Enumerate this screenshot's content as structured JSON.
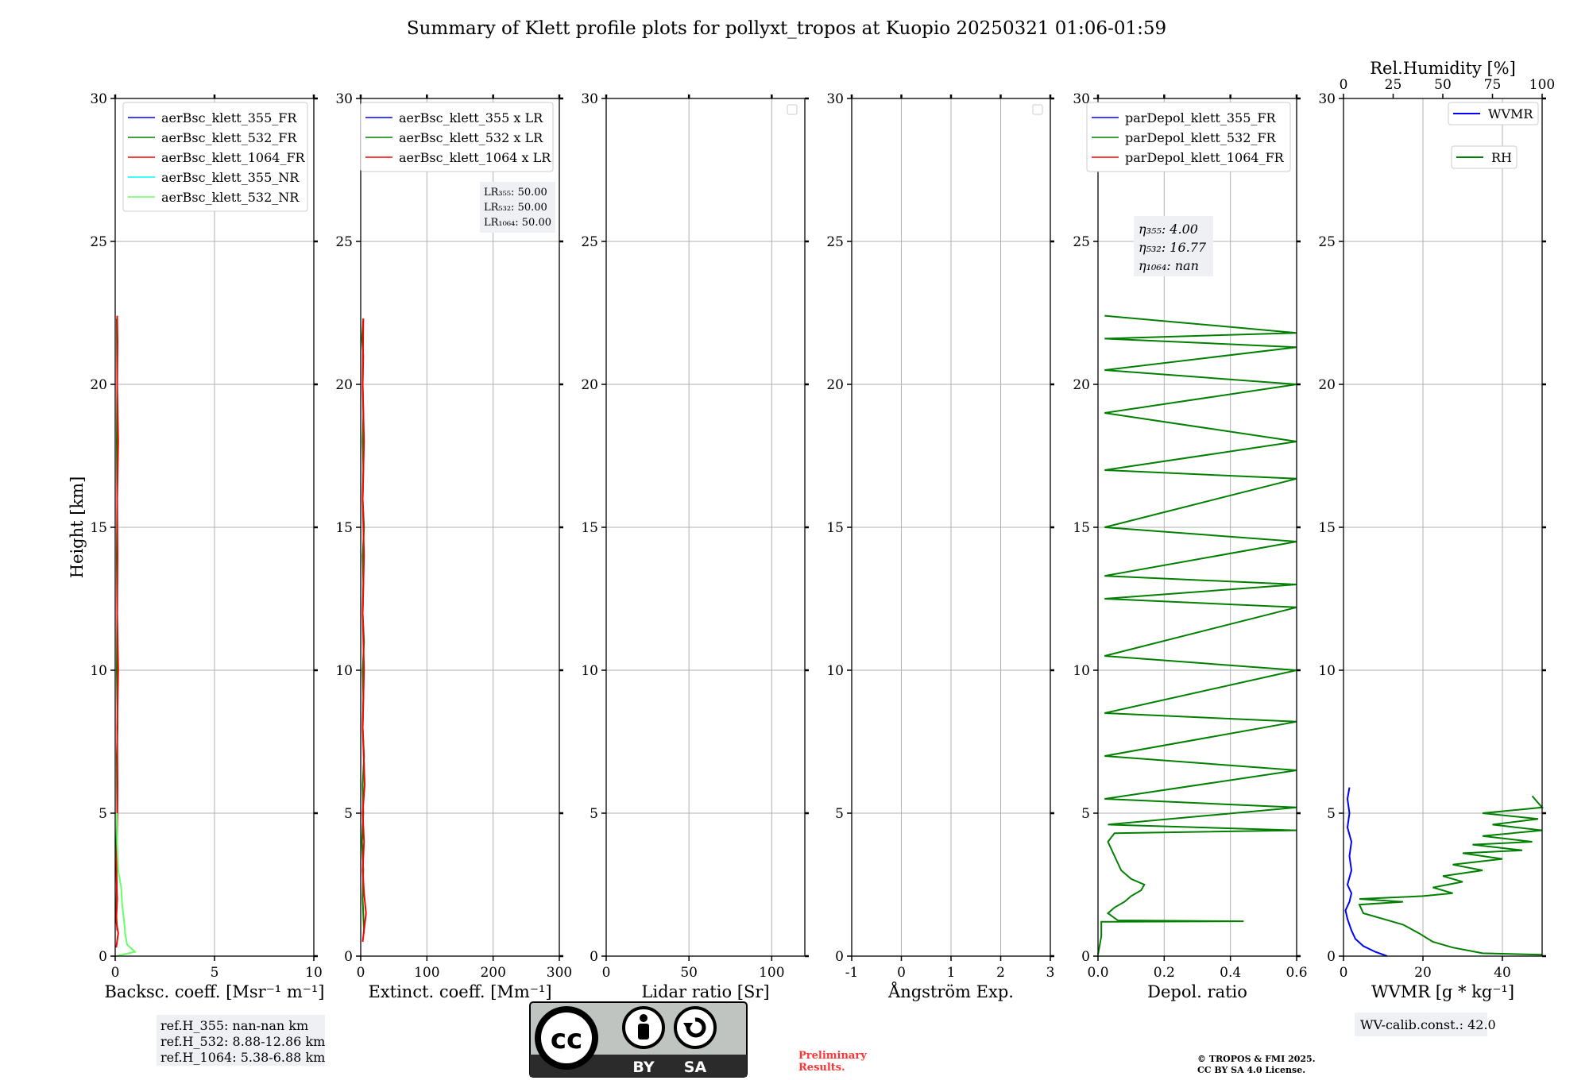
{
  "figure": {
    "title": "Summary of Klett profile plots for pollyxt_tropos at Kuopio 20250321 01:06-01:59",
    "preliminary_line1": "Preliminary",
    "preliminary_line2": "Results.",
    "copyright_line1": "© TROPOS & FMI 2025.",
    "copyright_line2": "CC BY SA 4.0 License.",
    "license_badge": {
      "by": "BY",
      "sa": "SA",
      "cc": "cc"
    }
  },
  "chart_data": [
    {
      "id": "bsc",
      "type": "line",
      "xlabel": "Backsc. coeff. [Msr⁻¹ m⁻¹]",
      "ylabel": "Height [km]",
      "xlim": [
        0,
        10
      ],
      "ylim": [
        0,
        30
      ],
      "xticks": [
        0,
        5,
        10
      ],
      "yticks": [
        0,
        5,
        10,
        15,
        20,
        25,
        30
      ],
      "grid": true,
      "legend": "top-right",
      "series": [
        {
          "name": "aerBsc_klett_355_FR",
          "color": "#0000ff",
          "points": []
        },
        {
          "name": "aerBsc_klett_532_FR",
          "color": "#008000",
          "points": [
            [
              0.1,
              0.9
            ],
            [
              0.05,
              1.5
            ],
            [
              0.08,
              2.5
            ],
            [
              0.06,
              4
            ],
            [
              0.1,
              5
            ],
            [
              0.08,
              7
            ],
            [
              0.12,
              8
            ],
            [
              0.08,
              10
            ],
            [
              0.1,
              12
            ],
            [
              0.08,
              14
            ],
            [
              0.1,
              16
            ],
            [
              0.08,
              18
            ],
            [
              0.1,
              20
            ],
            [
              0.08,
              22.3
            ]
          ]
        },
        {
          "name": "aerBsc_klett_1064_FR",
          "color": "#ff0000",
          "points": [
            [
              0.05,
              0.3
            ],
            [
              0.15,
              0.8
            ],
            [
              0.05,
              1.2
            ],
            [
              0.1,
              2
            ],
            [
              0.05,
              3
            ],
            [
              0.1,
              4
            ],
            [
              0.12,
              6
            ],
            [
              0.1,
              8
            ],
            [
              0.15,
              10
            ],
            [
              0.1,
              12
            ],
            [
              0.12,
              14
            ],
            [
              0.1,
              16
            ],
            [
              0.15,
              18
            ],
            [
              0.1,
              20
            ],
            [
              0.12,
              21.5
            ],
            [
              0.1,
              22.4
            ]
          ]
        },
        {
          "name": "aerBsc_klett_355_NR",
          "color": "#00ffff",
          "points": []
        },
        {
          "name": "aerBsc_klett_532_NR",
          "color": "#66ff66",
          "points": [
            [
              0.05,
              0
            ],
            [
              1.0,
              0.15
            ],
            [
              0.6,
              0.4
            ],
            [
              0.5,
              0.8
            ],
            [
              0.45,
              1.2
            ],
            [
              0.35,
              1.8
            ],
            [
              0.3,
              2.4
            ],
            [
              0.15,
              3
            ],
            [
              0.1,
              4
            ],
            [
              0.08,
              5
            ]
          ]
        }
      ],
      "notes": [
        "ref.H_355: nan-nan km",
        "ref.H_532: 8.88-12.86 km",
        "ref.H_1064: 5.38-6.88 km"
      ]
    },
    {
      "id": "ext",
      "type": "line",
      "xlabel": "Extinct. coeff. [Mm⁻¹]",
      "xlim": [
        0,
        300
      ],
      "ylim": [
        0,
        30
      ],
      "xticks": [
        0,
        100,
        200,
        300
      ],
      "yticks": [
        0,
        5,
        10,
        15,
        20,
        25,
        30
      ],
      "grid": true,
      "legend": "top-right",
      "series": [
        {
          "name": "aerBsc_klett_355 x LR",
          "color": "#0000ff",
          "points": []
        },
        {
          "name": "aerBsc_klett_532 x LR",
          "color": "#008000",
          "points": [
            [
              5,
              0.8
            ],
            [
              3,
              2
            ],
            [
              4,
              3
            ],
            [
              2,
              4
            ],
            [
              4,
              5
            ],
            [
              3,
              6
            ],
            [
              5,
              7
            ],
            [
              3,
              8
            ],
            [
              4,
              9
            ],
            [
              3,
              10
            ],
            [
              5,
              11
            ],
            [
              3,
              12
            ],
            [
              4,
              13
            ],
            [
              3,
              14
            ],
            [
              5,
              15
            ],
            [
              3,
              16
            ],
            [
              4,
              17
            ],
            [
              3,
              18
            ],
            [
              4,
              19
            ],
            [
              3,
              20
            ],
            [
              4,
              21
            ],
            [
              2,
              21.6
            ],
            [
              4,
              22.3
            ]
          ]
        },
        {
          "name": "aerBsc_klett_1064 x LR",
          "color": "#ff0000",
          "points": [
            [
              3,
              0.5
            ],
            [
              8,
              1.5
            ],
            [
              5,
              2.2
            ],
            [
              3,
              3
            ],
            [
              5,
              4
            ],
            [
              3,
              5
            ],
            [
              6,
              6
            ],
            [
              3,
              8
            ],
            [
              5,
              10
            ],
            [
              3,
              12
            ],
            [
              5,
              14
            ],
            [
              3,
              16
            ],
            [
              5,
              18
            ],
            [
              3,
              20
            ],
            [
              4,
              22.3
            ]
          ]
        }
      ],
      "lr_box": [
        "LR₃₅₅: 50.00",
        "LR₅₃₂: 50.00",
        "LR₁₀₆₄: 50.00"
      ]
    },
    {
      "id": "lr",
      "type": "line",
      "xlabel": "Lidar ratio [Sr]",
      "xlim": [
        0,
        120
      ],
      "ylim": [
        0,
        30
      ],
      "xticks": [
        0,
        50,
        100
      ],
      "yticks": [
        0,
        5,
        10,
        15,
        20,
        25,
        30
      ],
      "grid": true,
      "legend": "top-right",
      "series": []
    },
    {
      "id": "ae",
      "type": "line",
      "xlabel": "Ångström Exp.",
      "xlim": [
        -1,
        3
      ],
      "ylim": [
        0,
        30
      ],
      "xticks": [
        -1,
        0,
        1,
        2,
        3
      ],
      "yticks": [
        0,
        5,
        10,
        15,
        20,
        25,
        30
      ],
      "grid": true,
      "legend": "top-right",
      "series": []
    },
    {
      "id": "depol",
      "type": "line",
      "xlabel": "Depol. ratio",
      "xlim": [
        0,
        0.6
      ],
      "ylim": [
        0,
        30
      ],
      "xticks": [
        0.0,
        0.2,
        0.4,
        0.6
      ],
      "yticks": [
        0,
        5,
        10,
        15,
        20,
        25,
        30
      ],
      "grid": true,
      "legend": "top-right",
      "series": [
        {
          "name": "parDepol_klett_355_FR",
          "color": "#0000ff",
          "points": []
        },
        {
          "name": "parDepol_klett_532_FR",
          "color": "#008000",
          "points": [
            [
              0.0,
              0.05
            ],
            [
              0.01,
              0.7
            ],
            [
              0.01,
              1.2
            ],
            [
              0.44,
              1.22
            ],
            [
              0.06,
              1.25
            ],
            [
              0.03,
              1.5
            ],
            [
              0.05,
              1.7
            ],
            [
              0.08,
              1.9
            ],
            [
              0.1,
              2.1
            ],
            [
              0.13,
              2.3
            ],
            [
              0.14,
              2.5
            ],
            [
              0.1,
              2.7
            ],
            [
              0.07,
              3.0
            ],
            [
              0.05,
              3.5
            ],
            [
              0.03,
              4.0
            ],
            [
              0.05,
              4.3
            ],
            [
              0.6,
              4.4
            ],
            [
              0.03,
              4.6
            ],
            [
              0.6,
              5.2
            ],
            [
              0.02,
              5.5
            ],
            [
              0.6,
              6.5
            ],
            [
              0.02,
              7.0
            ],
            [
              0.6,
              8.2
            ],
            [
              0.02,
              8.5
            ],
            [
              0.6,
              10.0
            ],
            [
              0.02,
              10.5
            ],
            [
              0.6,
              12.2
            ],
            [
              0.02,
              12.5
            ],
            [
              0.6,
              13.0
            ],
            [
              0.02,
              13.3
            ],
            [
              0.6,
              14.5
            ],
            [
              0.02,
              15.0
            ],
            [
              0.6,
              16.7
            ],
            [
              0.02,
              17.0
            ],
            [
              0.6,
              18.0
            ],
            [
              0.02,
              19.0
            ],
            [
              0.6,
              20.0
            ],
            [
              0.02,
              20.5
            ],
            [
              0.6,
              21.3
            ],
            [
              0.02,
              21.6
            ],
            [
              0.6,
              21.8
            ],
            [
              0.02,
              22.4
            ]
          ]
        },
        {
          "name": "parDepol_klett_1064_FR",
          "color": "#ff0000",
          "points": []
        }
      ],
      "eta_box": [
        "η₃₅₅: 4.00",
        "η₅₃₂: 16.77",
        "η₁₀₆₄: nan"
      ]
    },
    {
      "id": "wv",
      "type": "line",
      "xlabel": "WVMR [g * kg⁻¹]",
      "x2label": "Rel.Humidity [%]",
      "xlim": [
        0,
        50
      ],
      "x2lim": [
        0,
        100
      ],
      "ylim": [
        0,
        30
      ],
      "xticks": [
        0,
        20,
        40
      ],
      "x2ticks": [
        0,
        25,
        50,
        75,
        100
      ],
      "yticks": [
        0,
        5,
        10,
        15,
        20,
        25,
        30
      ],
      "grid": true,
      "legend": "top-right",
      "series": [
        {
          "name": "WVMR",
          "color": "#0000ff",
          "points": [
            [
              11,
              0
            ],
            [
              8,
              0.15
            ],
            [
              5,
              0.35
            ],
            [
              3,
              0.6
            ],
            [
              2,
              0.9
            ],
            [
              1,
              1.3
            ],
            [
              0.5,
              1.6
            ],
            [
              1.5,
              1.9
            ],
            [
              2,
              2.2
            ],
            [
              1,
              2.5
            ],
            [
              2,
              3.0
            ],
            [
              1.5,
              3.5
            ],
            [
              2,
              4.0
            ],
            [
              1,
              4.5
            ],
            [
              1.5,
              5.0
            ],
            [
              1,
              5.5
            ],
            [
              1.5,
              5.9
            ]
          ]
        },
        {
          "name": "RH",
          "color": "#008000",
          "points": [
            [
              100,
              0.05
            ],
            [
              70,
              0.1
            ],
            [
              55,
              0.3
            ],
            [
              45,
              0.5
            ],
            [
              38,
              0.8
            ],
            [
              30,
              1.1
            ],
            [
              20,
              1.3
            ],
            [
              10,
              1.5
            ],
            [
              8,
              1.8
            ],
            [
              30,
              1.9
            ],
            [
              8,
              2.0
            ],
            [
              40,
              2.1
            ],
            [
              55,
              2.2
            ],
            [
              45,
              2.4
            ],
            [
              60,
              2.6
            ],
            [
              50,
              2.8
            ],
            [
              70,
              3.0
            ],
            [
              55,
              3.2
            ],
            [
              80,
              3.4
            ],
            [
              60,
              3.6
            ],
            [
              90,
              3.7
            ],
            [
              65,
              3.9
            ],
            [
              95,
              4.0
            ],
            [
              70,
              4.2
            ],
            [
              100,
              4.4
            ],
            [
              75,
              4.6
            ],
            [
              98,
              4.8
            ],
            [
              70,
              5.0
            ],
            [
              100,
              5.2
            ],
            [
              95,
              5.6
            ]
          ]
        }
      ],
      "wv_note": "WV-calib.const.: 42.0"
    }
  ]
}
